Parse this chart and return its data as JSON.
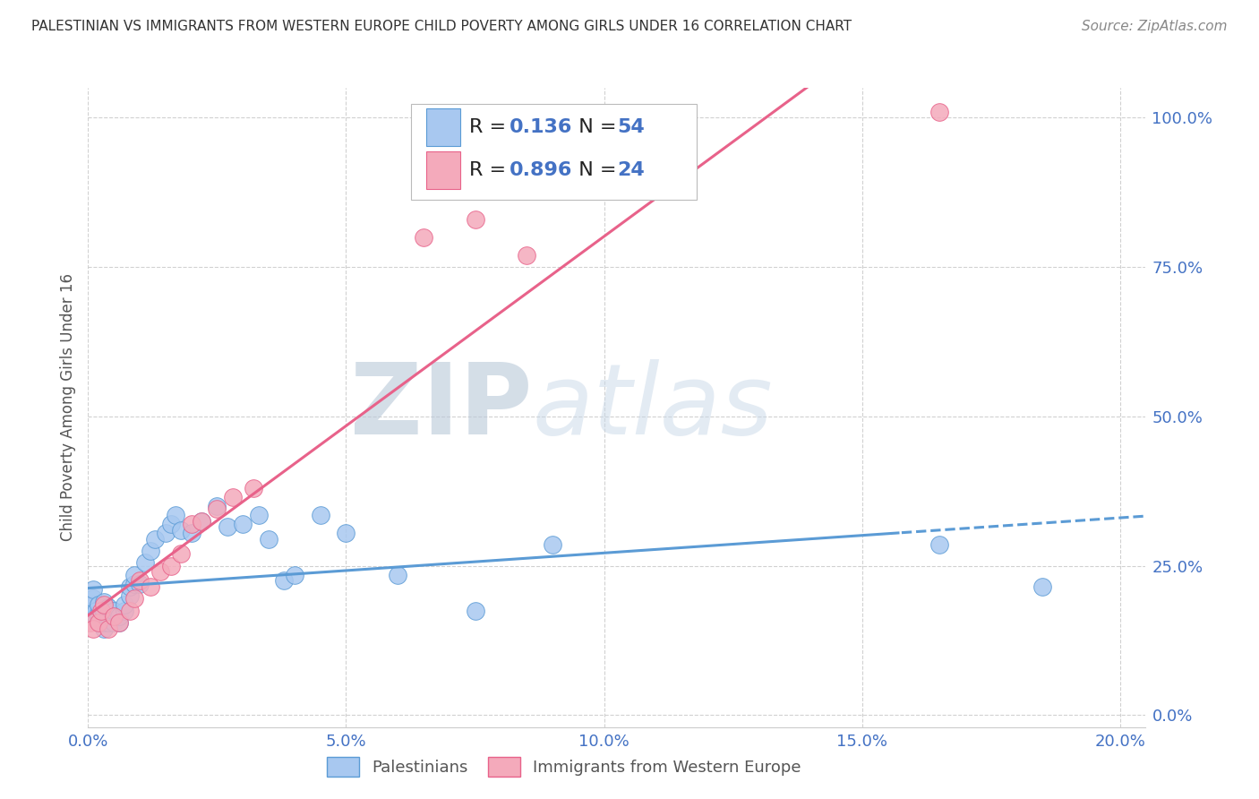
{
  "title": "PALESTINIAN VS IMMIGRANTS FROM WESTERN EUROPE CHILD POVERTY AMONG GIRLS UNDER 16 CORRELATION CHART",
  "source": "Source: ZipAtlas.com",
  "xlabel_ticks": [
    "0.0%",
    "5.0%",
    "10.0%",
    "15.0%",
    "20.0%"
  ],
  "xlabel_tick_vals": [
    0.0,
    0.05,
    0.1,
    0.15,
    0.2
  ],
  "ylabel_ticks": [
    "0.0%",
    "25.0%",
    "50.0%",
    "75.0%",
    "100.0%"
  ],
  "ylabel_tick_vals": [
    0.0,
    0.25,
    0.5,
    0.75,
    1.0
  ],
  "ylabel_label": "Child Poverty Among Girls Under 16",
  "xmin": 0.0,
  "xmax": 0.205,
  "ymin": -0.02,
  "ymax": 1.05,
  "blue_color": "#A8C8F0",
  "pink_color": "#F4AABB",
  "blue_line_color": "#5B9BD5",
  "pink_line_color": "#E8628A",
  "R_blue": 0.136,
  "N_blue": 54,
  "R_pink": 0.896,
  "N_pink": 24,
  "blue_scatter_x": [
    0.0005,
    0.001,
    0.001,
    0.001,
    0.001,
    0.0015,
    0.0015,
    0.002,
    0.002,
    0.002,
    0.0025,
    0.003,
    0.003,
    0.003,
    0.003,
    0.003,
    0.004,
    0.004,
    0.004,
    0.005,
    0.005,
    0.005,
    0.006,
    0.006,
    0.007,
    0.007,
    0.008,
    0.008,
    0.009,
    0.009,
    0.01,
    0.011,
    0.012,
    0.013,
    0.015,
    0.016,
    0.017,
    0.018,
    0.02,
    0.022,
    0.025,
    0.027,
    0.03,
    0.033,
    0.035,
    0.038,
    0.04,
    0.045,
    0.05,
    0.06,
    0.075,
    0.09,
    0.165,
    0.185
  ],
  "blue_scatter_y": [
    0.175,
    0.165,
    0.185,
    0.195,
    0.21,
    0.165,
    0.175,
    0.155,
    0.17,
    0.185,
    0.16,
    0.145,
    0.155,
    0.165,
    0.175,
    0.19,
    0.155,
    0.165,
    0.18,
    0.155,
    0.165,
    0.175,
    0.155,
    0.165,
    0.175,
    0.185,
    0.2,
    0.215,
    0.22,
    0.235,
    0.22,
    0.255,
    0.275,
    0.295,
    0.305,
    0.32,
    0.335,
    0.31,
    0.305,
    0.325,
    0.35,
    0.315,
    0.32,
    0.335,
    0.295,
    0.225,
    0.235,
    0.335,
    0.305,
    0.235,
    0.175,
    0.285,
    0.285,
    0.215
  ],
  "pink_scatter_x": [
    0.0005,
    0.001,
    0.002,
    0.0025,
    0.003,
    0.004,
    0.005,
    0.006,
    0.008,
    0.009,
    0.01,
    0.012,
    0.014,
    0.016,
    0.018,
    0.02,
    0.022,
    0.025,
    0.028,
    0.032,
    0.065,
    0.075,
    0.085,
    0.165
  ],
  "pink_scatter_y": [
    0.155,
    0.145,
    0.155,
    0.175,
    0.185,
    0.145,
    0.165,
    0.155,
    0.175,
    0.195,
    0.225,
    0.215,
    0.24,
    0.25,
    0.27,
    0.32,
    0.325,
    0.345,
    0.365,
    0.38,
    0.8,
    0.83,
    0.77,
    1.01
  ],
  "watermark_zip": "ZIP",
  "watermark_atlas": "atlas",
  "watermark_color": "#D0DCE8",
  "background_color": "#FFFFFF",
  "grid_color": "#CCCCCC",
  "tick_color": "#4472C4",
  "title_color": "#333333",
  "source_color": "#888888",
  "ylabel_color": "#555555"
}
